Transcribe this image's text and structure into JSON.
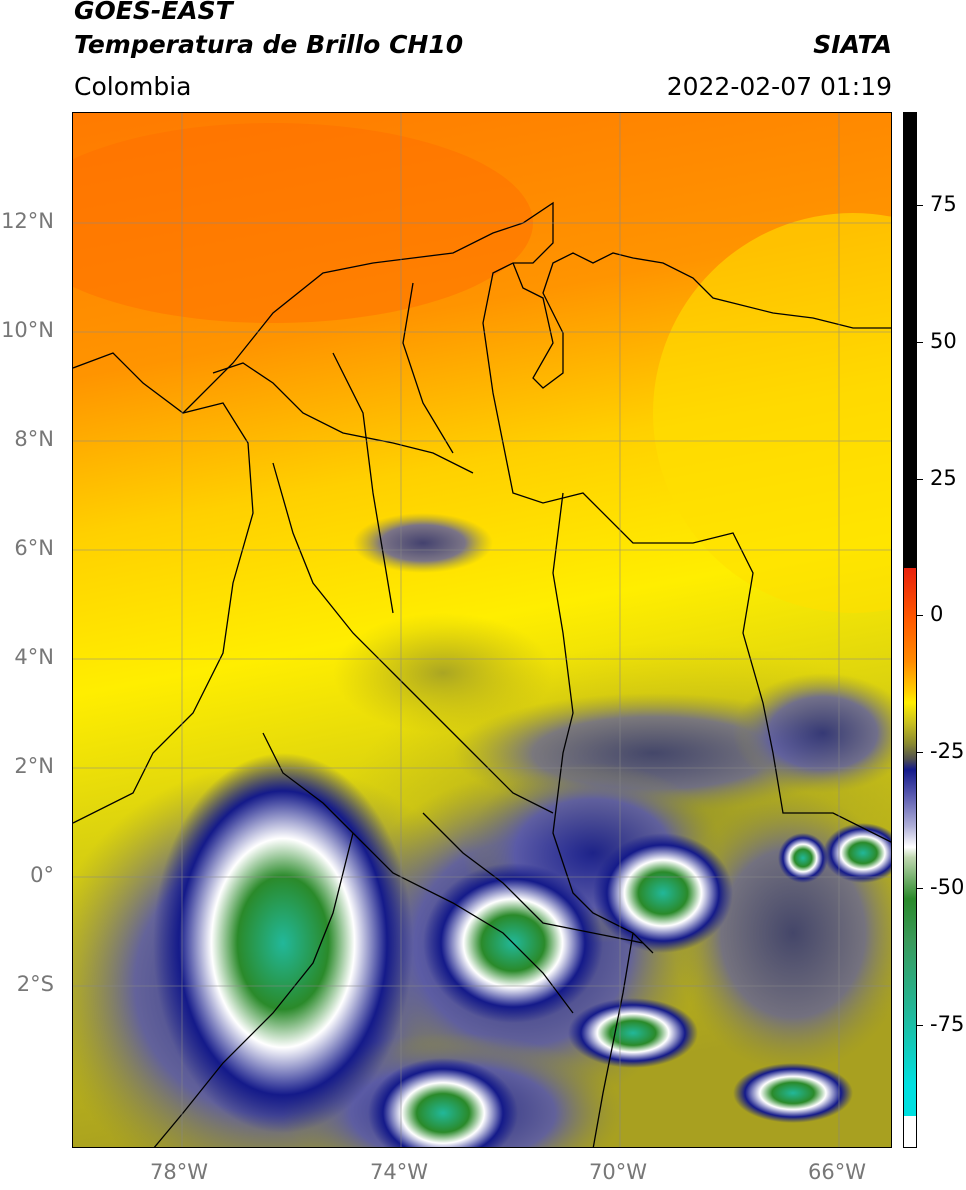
{
  "header": {
    "satellite": "GOES-EAST",
    "product": "Temperatura de Brillo CH10",
    "region": "Colombia",
    "agency": "SIATA",
    "datetime": "2022-02-07 01:19"
  },
  "map": {
    "lon_range": [
      -80,
      -65
    ],
    "lat_range": [
      -5,
      14
    ],
    "lat_ticks": [
      "12°N",
      "10°N",
      "8°N",
      "6°N",
      "4°N",
      "2°N",
      "0°",
      "2°S"
    ],
    "lon_ticks": [
      "78°W",
      "74°W",
      "70°W",
      "66°W"
    ],
    "gridlines": true
  },
  "colorbar": {
    "ticks": [
      "75",
      "50",
      "25",
      "0",
      "-25",
      "-50",
      "-75"
    ],
    "range": [
      -95,
      90
    ],
    "colors": {
      "black": "#000000",
      "red": "#e8200c",
      "orange": "#ff8a00",
      "yellow": "#ffee00",
      "olive": "#a8a020",
      "navy": "#141a8a",
      "white": "#ffffff",
      "green": "#2a8a2a",
      "teal": "#22b89a",
      "cyan": "#00e0e0"
    }
  }
}
